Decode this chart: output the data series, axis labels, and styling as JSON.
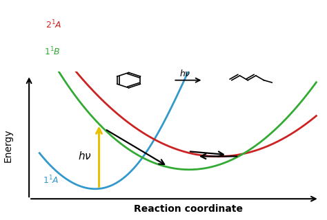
{
  "xlabel": "Reaction coordinate",
  "ylabel": "Energy",
  "bg_color": "#ffffff",
  "curve_blue_color": "#3399cc",
  "curve_red_color": "#cc2222",
  "curve_green_color": "#33aa33",
  "arrow_yellow_color": "#e8c000",
  "label_blue": "1$^1$$A$",
  "label_red": "2$^1$$A$",
  "label_green": "1$^1$$B$",
  "hv_label": "$h\\nu$",
  "xmin": 0.0,
  "xmax": 10.0,
  "ymin": -2.0,
  "ymax": 5.5
}
